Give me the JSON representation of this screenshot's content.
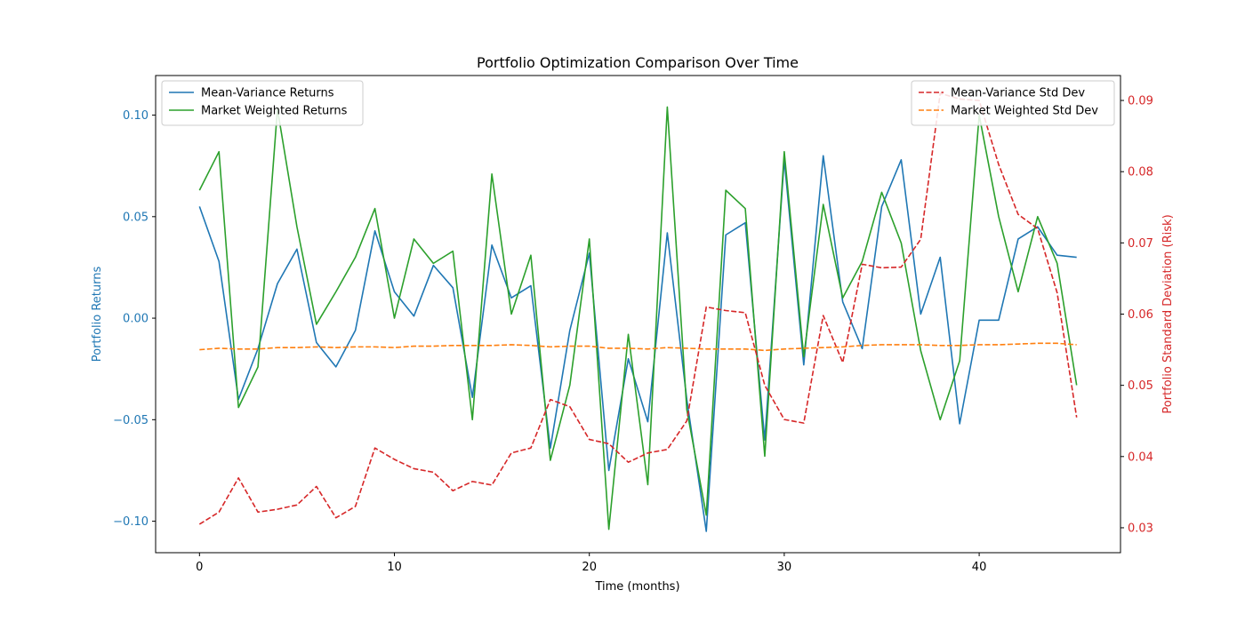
{
  "chart_data": {
    "type": "line",
    "title": "Portfolio Optimization Comparison Over Time",
    "xlabel": "Time (months)",
    "ylabel_left": "Portfolio Returns",
    "ylabel_right": "Portfolio Standard Deviation (Risk)",
    "xlim": [
      -2.25,
      47.25
    ],
    "ylim_left": [
      -0.1155,
      0.1195
    ],
    "ylim_right": [
      0.0265,
      0.0935
    ],
    "x_ticks": [
      0,
      10,
      20,
      30,
      40
    ],
    "x_tick_labels": [
      "0",
      "10",
      "20",
      "30",
      "40"
    ],
    "y_left_ticks": [
      -0.1,
      -0.05,
      0.0,
      0.05,
      0.1
    ],
    "y_left_tick_labels": [
      "−0.10",
      "−0.05",
      "0.00",
      "0.05",
      "0.10"
    ],
    "y_right_ticks": [
      0.03,
      0.04,
      0.05,
      0.06,
      0.07,
      0.08,
      0.09
    ],
    "y_right_tick_labels": [
      "0.03",
      "0.04",
      "0.05",
      "0.06",
      "0.07",
      "0.08",
      "0.09"
    ],
    "grid": false,
    "legend_left_placement": "top-left",
    "legend_right_placement": "top-right",
    "x": [
      0,
      1,
      2,
      3,
      4,
      5,
      6,
      7,
      8,
      9,
      10,
      11,
      12,
      13,
      14,
      15,
      16,
      17,
      18,
      19,
      20,
      21,
      22,
      23,
      24,
      25,
      26,
      27,
      28,
      29,
      30,
      31,
      32,
      33,
      34,
      35,
      36,
      37,
      38,
      39,
      40,
      41,
      42,
      43,
      44,
      45
    ],
    "series_left": [
      {
        "name": "Mean-Variance Returns",
        "color": "#1f77b4",
        "dash": "solid",
        "values": [
          0.055,
          0.028,
          -0.04,
          -0.015,
          0.017,
          0.034,
          -0.012,
          -0.024,
          -0.006,
          0.043,
          0.013,
          0.001,
          0.026,
          0.015,
          -0.039,
          0.036,
          0.01,
          0.016,
          -0.064,
          -0.006,
          0.032,
          -0.075,
          -0.02,
          -0.051,
          0.042,
          -0.04,
          -0.105,
          0.041,
          0.047,
          -0.06,
          0.078,
          -0.023,
          0.08,
          0.008,
          -0.015,
          0.055,
          0.078,
          0.002,
          0.03,
          -0.052,
          -0.001,
          -0.001,
          0.039,
          0.045,
          0.031,
          0.03
        ]
      },
      {
        "name": "Market Weighted Returns",
        "color": "#2ca02c",
        "dash": "solid",
        "values": [
          0.063,
          0.082,
          -0.044,
          -0.024,
          0.103,
          0.045,
          -0.003,
          0.013,
          0.03,
          0.054,
          0.0,
          0.039,
          0.027,
          0.033,
          -0.05,
          0.071,
          0.002,
          0.031,
          -0.07,
          -0.033,
          0.039,
          -0.104,
          -0.008,
          -0.082,
          0.104,
          -0.045,
          -0.097,
          0.063,
          0.054,
          -0.068,
          0.082,
          -0.019,
          0.056,
          0.01,
          0.028,
          0.062,
          0.037,
          -0.016,
          -0.05,
          -0.021,
          0.1,
          0.05,
          0.013,
          0.05,
          0.027,
          -0.033
        ]
      }
    ],
    "series_right": [
      {
        "name": "Mean-Variance Std Dev",
        "color": "#d62728",
        "dash": "dashed",
        "values": [
          0.0305,
          0.0322,
          0.037,
          0.0322,
          0.0326,
          0.0332,
          0.0358,
          0.0314,
          0.033,
          0.0412,
          0.0396,
          0.0383,
          0.0378,
          0.0352,
          0.0365,
          0.036,
          0.0405,
          0.0412,
          0.048,
          0.047,
          0.0424,
          0.0418,
          0.0392,
          0.0405,
          0.041,
          0.045,
          0.061,
          0.0605,
          0.0602,
          0.05,
          0.0452,
          0.0447,
          0.0598,
          0.0532,
          0.067,
          0.0665,
          0.0666,
          0.0705,
          0.091,
          0.0902,
          0.09,
          0.081,
          0.074,
          0.072,
          0.063,
          0.0455
        ]
      },
      {
        "name": "Market Weighted Std Dev",
        "color": "#ff7f0e",
        "dash": "dashed",
        "values": [
          0.055,
          0.0552,
          0.0551,
          0.0551,
          0.0553,
          0.0553,
          0.0554,
          0.0553,
          0.0554,
          0.0554,
          0.0553,
          0.0555,
          0.0555,
          0.0556,
          0.0556,
          0.0556,
          0.0557,
          0.0556,
          0.0554,
          0.0555,
          0.0555,
          0.0552,
          0.0552,
          0.0551,
          0.0553,
          0.0552,
          0.0551,
          0.0551,
          0.0551,
          0.0549,
          0.0551,
          0.0552,
          0.0553,
          0.0554,
          0.0556,
          0.0557,
          0.0557,
          0.0557,
          0.0556,
          0.0556,
          0.0557,
          0.0557,
          0.0558,
          0.0559,
          0.0559,
          0.0557
        ]
      }
    ]
  },
  "colors": {
    "left_axis": "#1f77b4",
    "right_axis": "#d62728"
  }
}
